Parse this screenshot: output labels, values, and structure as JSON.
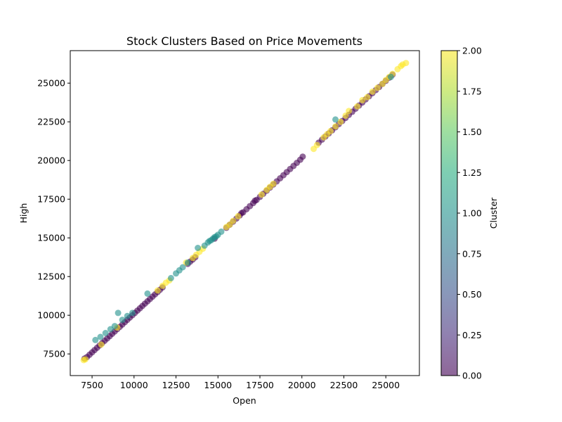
{
  "chart_data": {
    "type": "scatter",
    "title": "Stock Clusters Based on Price Movements",
    "xlabel": "Open",
    "ylabel": "High",
    "xlim": [
      6200,
      27000
    ],
    "ylim": [
      6100,
      27100
    ],
    "xticks": [
      "7500",
      "10000",
      "12500",
      "15000",
      "17500",
      "20000",
      "22500",
      "25000"
    ],
    "yticks": [
      "7500",
      "10000",
      "12500",
      "15000",
      "17500",
      "20000",
      "22500",
      "25000"
    ],
    "colorbar": {
      "label": "Cluster",
      "range": [
        0,
        2
      ],
      "ticks": [
        "0.00",
        "0.25",
        "0.50",
        "0.75",
        "1.00",
        "1.25",
        "1.50",
        "1.75",
        "2.00"
      ]
    },
    "grid": false,
    "point_alpha": 0.6,
    "series": [
      {
        "cluster": 0,
        "points": [
          [
            7050,
            7200
          ],
          [
            7200,
            7300
          ],
          [
            7350,
            7450
          ],
          [
            7500,
            7600
          ],
          [
            7650,
            7750
          ],
          [
            7800,
            7900
          ],
          [
            7950,
            8050
          ],
          [
            8100,
            8200
          ],
          [
            8250,
            8350
          ],
          [
            8400,
            8500
          ],
          [
            8550,
            8650
          ],
          [
            8700,
            8800
          ],
          [
            8850,
            8950
          ],
          [
            9000,
            9100
          ],
          [
            9150,
            9250
          ],
          [
            9300,
            9400
          ],
          [
            9450,
            9550
          ],
          [
            9600,
            9700
          ],
          [
            9750,
            9850
          ],
          [
            9900,
            10000
          ],
          [
            10050,
            10150
          ],
          [
            10200,
            10300
          ],
          [
            10350,
            10450
          ],
          [
            10500,
            10600
          ],
          [
            10650,
            10750
          ],
          [
            10800,
            10900
          ],
          [
            10950,
            11050
          ],
          [
            11100,
            11200
          ],
          [
            11250,
            11350
          ],
          [
            11400,
            11500
          ],
          [
            11550,
            11650
          ],
          [
            11700,
            11800
          ],
          [
            13200,
            13320
          ],
          [
            13350,
            13470
          ],
          [
            13500,
            13600
          ],
          [
            13650,
            13750
          ],
          [
            15500,
            15650
          ],
          [
            15700,
            15850
          ],
          [
            15900,
            16050
          ],
          [
            16100,
            16250
          ],
          [
            16300,
            16450
          ],
          [
            16500,
            16650
          ],
          [
            16700,
            16850
          ],
          [
            16900,
            17050
          ],
          [
            17100,
            17250
          ],
          [
            17300,
            17450
          ],
          [
            17500,
            17650
          ],
          [
            17700,
            17850
          ],
          [
            17900,
            18050
          ],
          [
            18100,
            18250
          ],
          [
            18300,
            18450
          ],
          [
            18500,
            18650
          ],
          [
            18700,
            18850
          ],
          [
            18900,
            19050
          ],
          [
            19100,
            19250
          ],
          [
            19300,
            19450
          ],
          [
            19500,
            19650
          ],
          [
            19700,
            19850
          ],
          [
            19900,
            20050
          ],
          [
            20050,
            20250
          ],
          [
            21000,
            21150
          ],
          [
            21200,
            21350
          ],
          [
            21400,
            21550
          ],
          [
            21600,
            21750
          ],
          [
            21800,
            21950
          ],
          [
            22000,
            22150
          ],
          [
            22200,
            22350
          ],
          [
            22400,
            22550
          ],
          [
            22600,
            22750
          ],
          [
            22800,
            22950
          ],
          [
            23000,
            23150
          ],
          [
            23200,
            23350
          ],
          [
            23400,
            23550
          ],
          [
            23600,
            23750
          ],
          [
            23800,
            23950
          ],
          [
            24000,
            24150
          ],
          [
            24200,
            24350
          ],
          [
            24400,
            24550
          ],
          [
            24600,
            24750
          ],
          [
            24800,
            24950
          ],
          [
            25000,
            25150
          ],
          [
            25200,
            25350
          ],
          [
            25400,
            25550
          ],
          [
            14800,
            14950
          ],
          [
            16400,
            16600
          ],
          [
            17200,
            17400
          ]
        ]
      },
      {
        "cluster": 1,
        "points": [
          [
            7700,
            8400
          ],
          [
            8000,
            8600
          ],
          [
            8300,
            8850
          ],
          [
            8600,
            9100
          ],
          [
            8850,
            9300
          ],
          [
            9050,
            10150
          ],
          [
            9300,
            9700
          ],
          [
            9600,
            9950
          ],
          [
            9900,
            10150
          ],
          [
            10800,
            11400
          ],
          [
            12200,
            12400
          ],
          [
            12500,
            12700
          ],
          [
            12700,
            12900
          ],
          [
            12900,
            13100
          ],
          [
            13200,
            13400
          ],
          [
            13800,
            14350
          ],
          [
            14200,
            14500
          ],
          [
            14400,
            14700
          ],
          [
            14500,
            14800
          ],
          [
            14600,
            14850
          ],
          [
            14700,
            14950
          ],
          [
            14800,
            15050
          ],
          [
            14900,
            15100
          ],
          [
            15000,
            15200
          ],
          [
            15200,
            15400
          ],
          [
            22000,
            22650
          ],
          [
            25300,
            25400
          ]
        ]
      },
      {
        "cluster": 2,
        "points": [
          [
            7000,
            7100
          ],
          [
            7100,
            7150
          ],
          [
            8050,
            8100
          ],
          [
            9000,
            9200
          ],
          [
            11400,
            11600
          ],
          [
            11700,
            11900
          ],
          [
            11900,
            12100
          ],
          [
            12100,
            12250
          ],
          [
            13100,
            13400
          ],
          [
            13500,
            13700
          ],
          [
            13700,
            13900
          ],
          [
            13900,
            14100
          ],
          [
            14100,
            14300
          ],
          [
            15500,
            15700
          ],
          [
            15700,
            15850
          ],
          [
            15900,
            16100
          ],
          [
            16200,
            16400
          ],
          [
            17600,
            17800
          ],
          [
            17900,
            18100
          ],
          [
            18100,
            18300
          ],
          [
            18300,
            18500
          ],
          [
            20700,
            20750
          ],
          [
            20900,
            21000
          ],
          [
            21300,
            21500
          ],
          [
            21500,
            21700
          ],
          [
            21700,
            21900
          ],
          [
            22000,
            22200
          ],
          [
            22300,
            22500
          ],
          [
            22600,
            22900
          ],
          [
            22800,
            23200
          ],
          [
            23300,
            23500
          ],
          [
            23600,
            23900
          ],
          [
            23900,
            24100
          ],
          [
            24200,
            24450
          ],
          [
            24500,
            24700
          ],
          [
            24800,
            24950
          ],
          [
            25000,
            25200
          ],
          [
            25200,
            25400
          ],
          [
            25400,
            25600
          ],
          [
            25700,
            25900
          ],
          [
            25900,
            26100
          ],
          [
            26000,
            26200
          ],
          [
            26200,
            26300
          ]
        ]
      }
    ]
  }
}
